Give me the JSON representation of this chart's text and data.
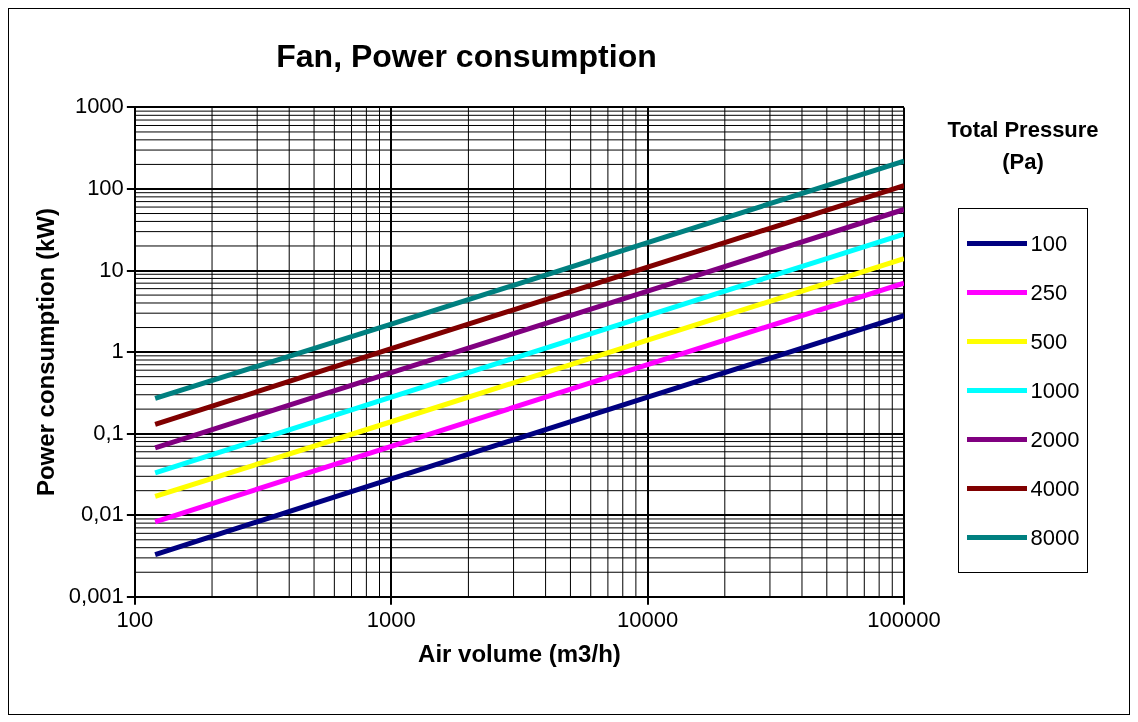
{
  "chart_data": {
    "type": "line",
    "title": "Fan, Power consumption",
    "xlabel": "Air volume (m3/h)",
    "ylabel": "Power consumption (kW)",
    "legend_title": "Total Pressure (Pa)",
    "x": [
      120,
      1000,
      10000,
      100000
    ],
    "series": [
      {
        "name": "100",
        "color": "#000080",
        "values": [
          0.0033,
          0.028,
          0.28,
          2.8
        ]
      },
      {
        "name": "250",
        "color": "#ff00ff",
        "values": [
          0.0083,
          0.07,
          0.7,
          7
        ]
      },
      {
        "name": "500",
        "color": "#ffff00",
        "values": [
          0.017,
          0.14,
          1.4,
          14
        ]
      },
      {
        "name": "1000",
        "color": "#00ffff",
        "values": [
          0.033,
          0.28,
          2.8,
          28
        ]
      },
      {
        "name": "2000",
        "color": "#800080",
        "values": [
          0.067,
          0.56,
          5.6,
          56
        ]
      },
      {
        "name": "4000",
        "color": "#800000",
        "values": [
          0.13,
          1.1,
          11,
          110
        ]
      },
      {
        "name": "8000",
        "color": "#008080",
        "values": [
          0.27,
          2.2,
          22,
          220
        ]
      }
    ],
    "log": "xy",
    "xlim": [
      100,
      100000
    ],
    "ylim": [
      0.001,
      1000
    ],
    "xticks": [
      100,
      1000,
      10000,
      100000
    ],
    "yticks": [
      {
        "value": 0.001,
        "label": "0,001"
      },
      {
        "value": 0.01,
        "label": "0,01"
      },
      {
        "value": 0.1,
        "label": "0,1"
      },
      1,
      10,
      100,
      1000
    ],
    "grid": true,
    "legend": "right",
    "marker": "none",
    "line_style": "solid"
  }
}
